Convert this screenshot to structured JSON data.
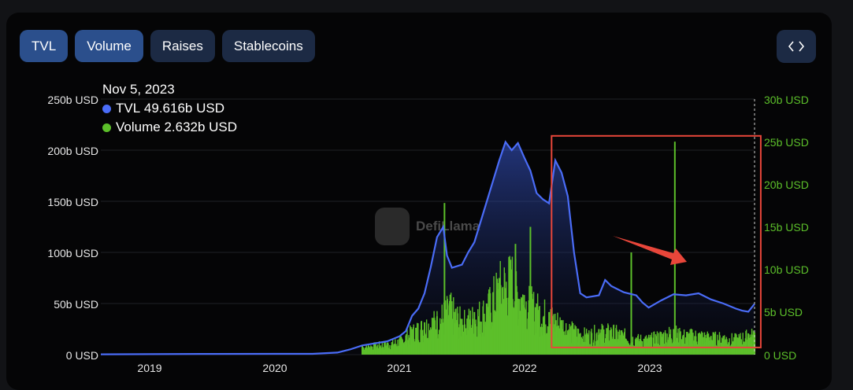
{
  "tabs": [
    {
      "label": "TVL",
      "active": true
    },
    {
      "label": "Volume",
      "active": true
    },
    {
      "label": "Raises",
      "active": false
    },
    {
      "label": "Stablecoins",
      "active": false
    }
  ],
  "embed_icon": "code-icon",
  "watermark": "DefiLlama",
  "tooltip": {
    "date": "Nov 5, 2023",
    "tvl_label": "TVL",
    "tvl_value": "49.616b USD",
    "volume_label": "Volume",
    "volume_value": "2.632b USD"
  },
  "chart_data": {
    "type": "area",
    "left_axis": {
      "ticks": [
        "250b USD",
        "200b USD",
        "150b USD",
        "100b USD",
        "50b USD",
        "0 USD"
      ],
      "range": [
        0,
        250
      ]
    },
    "right_axis": {
      "ticks": [
        "30b USD",
        "25b USD",
        "20b USD",
        "15b USD",
        "10b USD",
        "5b USD",
        "0 USD"
      ],
      "range": [
        0,
        30
      ]
    },
    "x_ticks": [
      "2019",
      "2020",
      "2021",
      "2022",
      "2023"
    ],
    "colors": {
      "tvl": "#4a6cf7",
      "volume": "#5cbf2a",
      "highlight": "#e8463a",
      "arrow": "#e8463a"
    },
    "series": [
      {
        "name": "TVL",
        "axis": "left",
        "points": [
          [
            2018.6,
            0.3
          ],
          [
            2019.0,
            0.5
          ],
          [
            2019.5,
            0.7
          ],
          [
            2020.0,
            0.8
          ],
          [
            2020.3,
            0.8
          ],
          [
            2020.5,
            2
          ],
          [
            2020.6,
            5
          ],
          [
            2020.7,
            9
          ],
          [
            2020.8,
            11
          ],
          [
            2020.9,
            13
          ],
          [
            2021.0,
            18
          ],
          [
            2021.05,
            23
          ],
          [
            2021.1,
            38
          ],
          [
            2021.15,
            45
          ],
          [
            2021.2,
            60
          ],
          [
            2021.25,
            86
          ],
          [
            2021.3,
            115
          ],
          [
            2021.35,
            125
          ],
          [
            2021.38,
            97
          ],
          [
            2021.42,
            85
          ],
          [
            2021.5,
            88
          ],
          [
            2021.55,
            100
          ],
          [
            2021.6,
            110
          ],
          [
            2021.7,
            150
          ],
          [
            2021.8,
            190
          ],
          [
            2021.85,
            208
          ],
          [
            2021.9,
            200
          ],
          [
            2021.95,
            207
          ],
          [
            2022.0,
            193
          ],
          [
            2022.05,
            180
          ],
          [
            2022.1,
            158
          ],
          [
            2022.15,
            152
          ],
          [
            2022.2,
            148
          ],
          [
            2022.25,
            190
          ],
          [
            2022.3,
            178
          ],
          [
            2022.35,
            155
          ],
          [
            2022.4,
            100
          ],
          [
            2022.45,
            60
          ],
          [
            2022.5,
            56
          ],
          [
            2022.6,
            58
          ],
          [
            2022.65,
            73
          ],
          [
            2022.7,
            67
          ],
          [
            2022.8,
            61
          ],
          [
            2022.9,
            58
          ],
          [
            2022.95,
            51
          ],
          [
            2023.0,
            46
          ],
          [
            2023.1,
            53
          ],
          [
            2023.2,
            59
          ],
          [
            2023.3,
            58
          ],
          [
            2023.4,
            60
          ],
          [
            2023.5,
            54
          ],
          [
            2023.6,
            50
          ],
          [
            2023.7,
            45
          ],
          [
            2023.75,
            43
          ],
          [
            2023.8,
            42
          ],
          [
            2023.85,
            49.6
          ]
        ]
      },
      {
        "name": "Volume",
        "axis": "right",
        "points": [
          [
            2020.7,
            1
          ],
          [
            2020.8,
            1.2
          ],
          [
            2020.9,
            1.4
          ],
          [
            2021.0,
            1.8
          ],
          [
            2021.1,
            3
          ],
          [
            2021.2,
            3.8
          ],
          [
            2021.3,
            4.5
          ],
          [
            2021.36,
            17.8
          ],
          [
            2021.4,
            6
          ],
          [
            2021.5,
            4.2
          ],
          [
            2021.6,
            5
          ],
          [
            2021.7,
            6
          ],
          [
            2021.8,
            9
          ],
          [
            2021.9,
            10
          ],
          [
            2021.93,
            13
          ],
          [
            2022.0,
            7
          ],
          [
            2022.05,
            15
          ],
          [
            2022.1,
            6
          ],
          [
            2022.2,
            5
          ],
          [
            2022.3,
            4
          ],
          [
            2022.4,
            3
          ],
          [
            2022.5,
            2.5
          ],
          [
            2022.6,
            3
          ],
          [
            2022.7,
            3
          ],
          [
            2022.86,
            12
          ],
          [
            2022.9,
            2
          ],
          [
            2023.0,
            2
          ],
          [
            2023.1,
            2.5
          ],
          [
            2023.2,
            3
          ],
          [
            2023.21,
            25
          ],
          [
            2023.25,
            2.5
          ],
          [
            2023.4,
            2.5
          ],
          [
            2023.5,
            2.2
          ],
          [
            2023.6,
            2.2
          ],
          [
            2023.7,
            2
          ],
          [
            2023.8,
            2.5
          ],
          [
            2023.85,
            2.6
          ]
        ]
      }
    ],
    "highlight_box": {
      "x0": 2022.22,
      "x1": 2023.9,
      "y_top_left": 214,
      "y_bottom_left": 7
    }
  }
}
